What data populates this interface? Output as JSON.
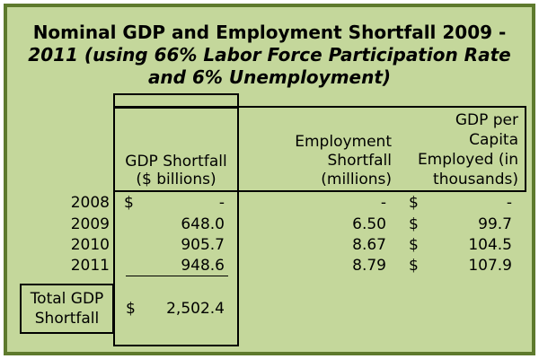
{
  "title": {
    "line1": "Nominal GDP and Employment Shortfall 2009 -",
    "line2": "2011 (using 66% Labor Force Participation Rate",
    "line3": "and 6% Unemployment)"
  },
  "headers": {
    "gdp_shortfall": [
      "GDP Shortfall",
      "($ billions)"
    ],
    "employment_shortfall": [
      "Employment",
      "Shortfall",
      "(millions)"
    ],
    "gdp_per_capita": [
      "GDP per",
      "Capita",
      "Employed (in",
      "thousands)"
    ]
  },
  "rows": [
    {
      "year": "2008",
      "gdp_currency": "$",
      "gdp": "-",
      "employment": "-",
      "percap_currency": "$",
      "percap": "-"
    },
    {
      "year": "2009",
      "gdp_currency": "",
      "gdp": "648.0",
      "employment": "6.50",
      "percap_currency": "$",
      "percap": "99.7"
    },
    {
      "year": "2010",
      "gdp_currency": "",
      "gdp": "905.7",
      "employment": "8.67",
      "percap_currency": "$",
      "percap": "104.5"
    },
    {
      "year": "2011",
      "gdp_currency": "",
      "gdp": "948.6",
      "employment": "8.79",
      "percap_currency": "$",
      "percap": "107.9"
    }
  ],
  "total": {
    "label": [
      "Total GDP",
      "Shortfall"
    ],
    "currency": "$",
    "value": "2,502.4"
  },
  "colors": {
    "background": "#c4d79b",
    "border": "#5e7a2d"
  }
}
